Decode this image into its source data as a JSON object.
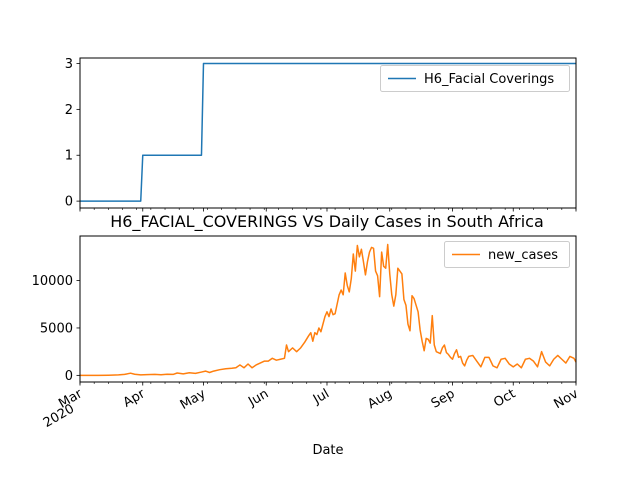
{
  "chart_data": [
    {
      "type": "line",
      "title": "",
      "xlabel": "",
      "ylabel": "",
      "xlim": [
        "2020-03-01",
        "2020-11-01"
      ],
      "ylim": [
        -0.15,
        3.12
      ],
      "yticks": [
        0,
        1,
        2,
        3
      ],
      "grid": false,
      "legend": "top-right",
      "series": [
        {
          "name": "H6_Facial Coverings",
          "color": "#1f77b4",
          "step_points": [
            [
              "2020-03-01",
              0
            ],
            [
              "2020-03-31",
              0
            ],
            [
              "2020-04-01",
              1
            ],
            [
              "2020-04-30",
              1
            ],
            [
              "2020-05-01",
              3
            ],
            [
              "2020-11-01",
              3
            ]
          ]
        }
      ]
    },
    {
      "type": "line",
      "title": "H6_FACIAL_COVERINGS VS Daily Cases in South Africa",
      "xlabel": "Date",
      "ylabel": "",
      "xlim": [
        "2020-03-01",
        "2020-11-01"
      ],
      "ylim": [
        -700,
        14700
      ],
      "yticks": [
        0,
        5000,
        10000
      ],
      "ytick_labels": [
        "0",
        "5000",
        "10000"
      ],
      "xticks": [
        {
          "date": "2020-03-01",
          "label": "Mar",
          "sublabel": "2020"
        },
        {
          "date": "2020-04-01",
          "label": "Apr"
        },
        {
          "date": "2020-05-01",
          "label": "May"
        },
        {
          "date": "2020-06-01",
          "label": "Jun"
        },
        {
          "date": "2020-07-01",
          "label": "Jul"
        },
        {
          "date": "2020-08-01",
          "label": "Aug"
        },
        {
          "date": "2020-09-01",
          "label": "Sep"
        },
        {
          "date": "2020-10-01",
          "label": "Oct"
        },
        {
          "date": "2020-11-01",
          "label": "Nov"
        }
      ],
      "grid": false,
      "legend": "top-right",
      "series": [
        {
          "name": "new_cases",
          "color": "#ff7f0e",
          "points": [
            [
              "2020-03-01",
              0
            ],
            [
              "2020-03-05",
              1
            ],
            [
              "2020-03-10",
              3
            ],
            [
              "2020-03-15",
              15
            ],
            [
              "2020-03-20",
              50
            ],
            [
              "2020-03-23",
              100
            ],
            [
              "2020-03-26",
              230
            ],
            [
              "2020-03-28",
              120
            ],
            [
              "2020-03-31",
              50
            ],
            [
              "2020-04-03",
              80
            ],
            [
              "2020-04-07",
              100
            ],
            [
              "2020-04-10",
              60
            ],
            [
              "2020-04-13",
              120
            ],
            [
              "2020-04-16",
              100
            ],
            [
              "2020-04-18",
              250
            ],
            [
              "2020-04-21",
              160
            ],
            [
              "2020-04-24",
              270
            ],
            [
              "2020-04-27",
              210
            ],
            [
              "2020-04-30",
              350
            ],
            [
              "2020-05-02",
              450
            ],
            [
              "2020-05-04",
              300
            ],
            [
              "2020-05-06",
              450
            ],
            [
              "2020-05-09",
              600
            ],
            [
              "2020-05-12",
              700
            ],
            [
              "2020-05-15",
              750
            ],
            [
              "2020-05-17",
              800
            ],
            [
              "2020-05-19",
              1100
            ],
            [
              "2020-05-21",
              800
            ],
            [
              "2020-05-23",
              1200
            ],
            [
              "2020-05-25",
              800
            ],
            [
              "2020-05-27",
              1100
            ],
            [
              "2020-05-29",
              1300
            ],
            [
              "2020-05-31",
              1500
            ],
            [
              "2020-06-02",
              1500
            ],
            [
              "2020-06-04",
              1800
            ],
            [
              "2020-06-06",
              1600
            ],
            [
              "2020-06-08",
              1700
            ],
            [
              "2020-06-10",
              1800
            ],
            [
              "2020-06-11",
              3200
            ],
            [
              "2020-06-12",
              2500
            ],
            [
              "2020-06-14",
              2900
            ],
            [
              "2020-06-16",
              2500
            ],
            [
              "2020-06-18",
              2900
            ],
            [
              "2020-06-20",
              3500
            ],
            [
              "2020-06-22",
              4200
            ],
            [
              "2020-06-23",
              4500
            ],
            [
              "2020-06-24",
              3600
            ],
            [
              "2020-06-25",
              4500
            ],
            [
              "2020-06-26",
              4300
            ],
            [
              "2020-06-27",
              5000
            ],
            [
              "2020-06-28",
              4600
            ],
            [
              "2020-06-30",
              6200
            ],
            [
              "2020-07-01",
              6700
            ],
            [
              "2020-07-02",
              6200
            ],
            [
              "2020-07-03",
              7000
            ],
            [
              "2020-07-04",
              6400
            ],
            [
              "2020-07-05",
              6500
            ],
            [
              "2020-07-07",
              8500
            ],
            [
              "2020-07-08",
              9000
            ],
            [
              "2020-07-09",
              8500
            ],
            [
              "2020-07-10",
              10800
            ],
            [
              "2020-07-11",
              9500
            ],
            [
              "2020-07-12",
              8800
            ],
            [
              "2020-07-13",
              10200
            ],
            [
              "2020-07-14",
              12800
            ],
            [
              "2020-07-15",
              11000
            ],
            [
              "2020-07-16",
              13700
            ],
            [
              "2020-07-17",
              12500
            ],
            [
              "2020-07-18",
              13300
            ],
            [
              "2020-07-19",
              12000
            ],
            [
              "2020-07-20",
              10600
            ],
            [
              "2020-07-21",
              12000
            ],
            [
              "2020-07-22",
              13000
            ],
            [
              "2020-07-23",
              13500
            ],
            [
              "2020-07-24",
              13400
            ],
            [
              "2020-07-25",
              11000
            ],
            [
              "2020-07-26",
              10500
            ],
            [
              "2020-07-27",
              8300
            ],
            [
              "2020-07-28",
              13000
            ],
            [
              "2020-07-29",
              11500
            ],
            [
              "2020-07-30",
              11300
            ],
            [
              "2020-07-31",
              13800
            ],
            [
              "2020-08-01",
              10700
            ],
            [
              "2020-08-02",
              8500
            ],
            [
              "2020-08-03",
              7300
            ],
            [
              "2020-08-04",
              8500
            ],
            [
              "2020-08-05",
              11300
            ],
            [
              "2020-08-06",
              11000
            ],
            [
              "2020-08-07",
              10700
            ],
            [
              "2020-08-08",
              8000
            ],
            [
              "2020-08-09",
              7400
            ],
            [
              "2020-08-10",
              5400
            ],
            [
              "2020-08-11",
              4700
            ],
            [
              "2020-08-12",
              8400
            ],
            [
              "2020-08-13",
              8100
            ],
            [
              "2020-08-14",
              7400
            ],
            [
              "2020-08-15",
              6700
            ],
            [
              "2020-08-16",
              4800
            ],
            [
              "2020-08-17",
              3600
            ],
            [
              "2020-08-18",
              2600
            ],
            [
              "2020-08-19",
              3900
            ],
            [
              "2020-08-20",
              3800
            ],
            [
              "2020-08-21",
              3400
            ],
            [
              "2020-08-22",
              6300
            ],
            [
              "2020-08-23",
              3200
            ],
            [
              "2020-08-24",
              2500
            ],
            [
              "2020-08-26",
              2300
            ],
            [
              "2020-08-27",
              2900
            ],
            [
              "2020-08-28",
              3200
            ],
            [
              "2020-08-29",
              2400
            ],
            [
              "2020-08-30",
              2200
            ],
            [
              "2020-08-31",
              1900
            ],
            [
              "2020-09-01",
              1700
            ],
            [
              "2020-09-02",
              2300
            ],
            [
              "2020-09-03",
              2700
            ],
            [
              "2020-09-04",
              1900
            ],
            [
              "2020-09-05",
              2000
            ],
            [
              "2020-09-06",
              1300
            ],
            [
              "2020-09-07",
              1000
            ],
            [
              "2020-09-08",
              1600
            ],
            [
              "2020-09-09",
              2000
            ],
            [
              "2020-09-11",
              2100
            ],
            [
              "2020-09-13",
              1500
            ],
            [
              "2020-09-15",
              900
            ],
            [
              "2020-09-17",
              1900
            ],
            [
              "2020-09-19",
              1900
            ],
            [
              "2020-09-21",
              1000
            ],
            [
              "2020-09-23",
              800
            ],
            [
              "2020-09-25",
              1700
            ],
            [
              "2020-09-27",
              1800
            ],
            [
              "2020-09-29",
              1200
            ],
            [
              "2020-10-01",
              900
            ],
            [
              "2020-10-03",
              1200
            ],
            [
              "2020-10-05",
              800
            ],
            [
              "2020-10-07",
              1700
            ],
            [
              "2020-10-09",
              1800
            ],
            [
              "2020-10-11",
              1500
            ],
            [
              "2020-10-13",
              900
            ],
            [
              "2020-10-15",
              2500
            ],
            [
              "2020-10-17",
              1400
            ],
            [
              "2020-10-19",
              1000
            ],
            [
              "2020-10-21",
              1700
            ],
            [
              "2020-10-23",
              2100
            ],
            [
              "2020-10-25",
              1700
            ],
            [
              "2020-10-27",
              1300
            ],
            [
              "2020-10-29",
              2000
            ],
            [
              "2020-10-31",
              1800
            ],
            [
              "2020-11-01",
              1400
            ]
          ]
        }
      ]
    }
  ]
}
